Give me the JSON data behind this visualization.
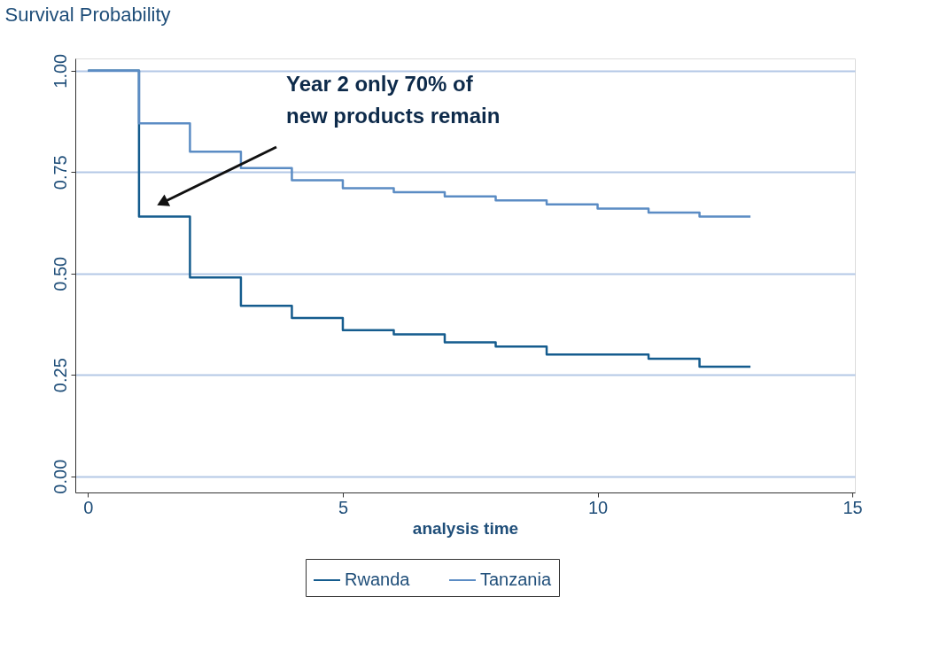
{
  "chart_data": {
    "type": "step",
    "ylabel": "Survival Probability",
    "xlabel": "analysis time",
    "x": [
      0,
      1,
      2,
      3,
      4,
      5,
      6,
      7,
      8,
      9,
      10,
      11,
      12,
      13
    ],
    "series": [
      {
        "name": "Rwanda",
        "color": "#155c8e",
        "values": [
          1.0,
          0.64,
          0.49,
          0.42,
          0.39,
          0.36,
          0.35,
          0.33,
          0.32,
          0.3,
          0.3,
          0.29,
          0.27,
          0.27
        ]
      },
      {
        "name": "Tanzania",
        "color": "#5b8cc4",
        "values": [
          1.0,
          0.87,
          0.8,
          0.76,
          0.73,
          0.71,
          0.7,
          0.69,
          0.68,
          0.67,
          0.66,
          0.65,
          0.64,
          0.64
        ]
      }
    ],
    "xlim": [
      -0.25,
      15.05
    ],
    "ylim": [
      -0.04,
      1.03
    ],
    "xticks": [
      0,
      5,
      10,
      15
    ],
    "yticks": [
      {
        "value": 0,
        "label": "0.00"
      },
      {
        "value": 0.25,
        "label": "0.25"
      },
      {
        "value": 0.5,
        "label": "0.50"
      },
      {
        "value": 0.75,
        "label": "0.75"
      },
      {
        "value": 1,
        "label": "1.00"
      }
    ],
    "grid": "y",
    "legend": "bottom",
    "annotations": [
      "Year 2 only 70% of\nnew products remain"
    ]
  }
}
